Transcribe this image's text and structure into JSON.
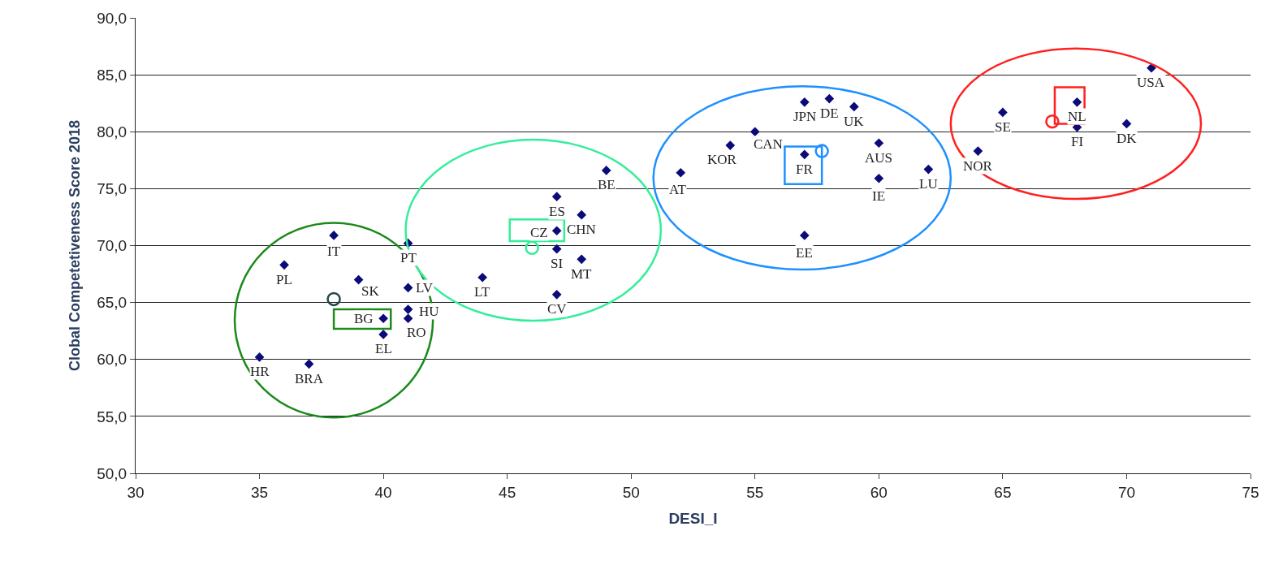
{
  "chart_data": {
    "type": "scatter",
    "xlabel": "DESI_I",
    "ylabel": "Clobal Competetiveness Score 2018",
    "xlim": [
      30,
      75
    ],
    "xticks": [
      30,
      35,
      40,
      45,
      50,
      55,
      60,
      65,
      70,
      75
    ],
    "ylim": [
      50,
      90
    ],
    "yticks": [
      {
        "value": 50,
        "label": "50,0"
      },
      {
        "value": 55,
        "label": "55,0"
      },
      {
        "value": 60,
        "label": "60,0"
      },
      {
        "value": 65,
        "label": "65,0"
      },
      {
        "value": 70,
        "label": "70,0"
      },
      {
        "value": 75,
        "label": "75,0"
      },
      {
        "value": 80,
        "label": "80,0"
      },
      {
        "value": 85,
        "label": "85,0"
      },
      {
        "value": 90,
        "label": "90,0"
      }
    ],
    "grid": "y",
    "series": [
      {
        "color": "#0a0a78",
        "marker": "diamond",
        "x": [
          38,
          36,
          39,
          41,
          41,
          41,
          41,
          40,
          40,
          35,
          37,
          44,
          47,
          47,
          47,
          48,
          48,
          47,
          49,
          52,
          54,
          55,
          57,
          58,
          59,
          57,
          60,
          60,
          62,
          57,
          64,
          65,
          68,
          68,
          70,
          71
        ],
        "values": [
          70.9,
          68.3,
          67.0,
          70.2,
          66.3,
          64.4,
          63.6,
          63.6,
          62.2,
          60.2,
          59.6,
          67.2,
          74.3,
          71.3,
          69.7,
          72.7,
          68.8,
          65.7,
          76.6,
          76.4,
          78.8,
          80.0,
          82.6,
          82.9,
          82.2,
          78.0,
          79.0,
          75.9,
          76.7,
          70.9,
          78.3,
          81.7,
          82.6,
          80.4,
          80.7,
          85.6
        ]
      },
      {
        "type": "scatter",
        "marker": "circle",
        "colors": [
          "#1f4a4a",
          "#33ee99",
          "#1e90ff",
          "#ff2020"
        ],
        "x": [
          38.0,
          46.0,
          57.7,
          67.0
        ],
        "values": [
          65.3,
          69.8,
          78.3,
          80.9
        ]
      }
    ],
    "annotations": [
      {
        "text": "IT",
        "x": 38,
        "y": 70.9
      },
      {
        "text": "PL",
        "x": 36,
        "y": 68.3
      },
      {
        "text": "SK",
        "x": 39,
        "y": 67.0
      },
      {
        "text": "PT",
        "x": 41,
        "y": 70.2
      },
      {
        "text": "LV",
        "x": 41,
        "y": 66.3
      },
      {
        "text": "HU",
        "x": 41,
        "y": 64.4
      },
      {
        "text": "RO",
        "x": 41,
        "y": 63.6
      },
      {
        "text": "BG",
        "x": 40,
        "y": 63.6
      },
      {
        "text": "EL",
        "x": 40,
        "y": 62.2
      },
      {
        "text": "HR",
        "x": 35,
        "y": 60.2
      },
      {
        "text": "BRA",
        "x": 37,
        "y": 59.6
      },
      {
        "text": "LT",
        "x": 44,
        "y": 67.2
      },
      {
        "text": "ES",
        "x": 47,
        "y": 74.3
      },
      {
        "text": "CZ",
        "x": 47,
        "y": 71.3
      },
      {
        "text": "SI",
        "x": 47,
        "y": 69.7
      },
      {
        "text": "CHN",
        "x": 48,
        "y": 72.7
      },
      {
        "text": "MT",
        "x": 48,
        "y": 68.8
      },
      {
        "text": "CV",
        "x": 47,
        "y": 65.7
      },
      {
        "text": "BE",
        "x": 49,
        "y": 76.6
      },
      {
        "text": "AT",
        "x": 52,
        "y": 76.4
      },
      {
        "text": "KOR",
        "x": 54,
        "y": 78.8
      },
      {
        "text": "CAN",
        "x": 55,
        "y": 80.0
      },
      {
        "text": "JPN",
        "x": 57,
        "y": 82.6
      },
      {
        "text": "DE",
        "x": 58,
        "y": 82.9
      },
      {
        "text": "UK",
        "x": 59,
        "y": 82.2
      },
      {
        "text": "FR",
        "x": 57,
        "y": 78.0
      },
      {
        "text": "AUS",
        "x": 60,
        "y": 79.0
      },
      {
        "text": "IE",
        "x": 60,
        "y": 75.9
      },
      {
        "text": "LU",
        "x": 62,
        "y": 76.7
      },
      {
        "text": "EE",
        "x": 57,
        "y": 70.9
      },
      {
        "text": "NOR",
        "x": 64,
        "y": 78.3
      },
      {
        "text": "SE",
        "x": 65,
        "y": 81.7
      },
      {
        "text": "NL",
        "x": 68,
        "y": 82.6
      },
      {
        "text": "FI",
        "x": 68,
        "y": 80.4
      },
      {
        "text": "DK",
        "x": 70,
        "y": 80.7
      },
      {
        "text": "USA",
        "x": 71,
        "y": 85.6
      }
    ]
  }
}
